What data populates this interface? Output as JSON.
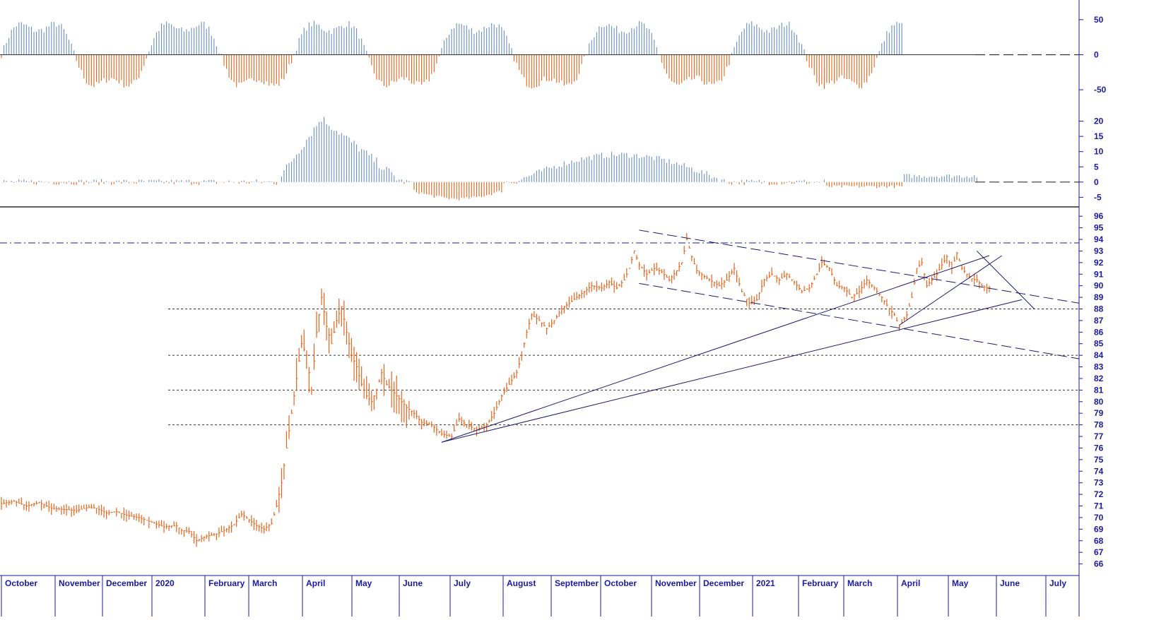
{
  "colors": {
    "up": "#6a8fbf",
    "down": "#e3641c",
    "axis": "#1a1aa0",
    "trend": "#1c1c6e",
    "grid": "#333333"
  },
  "chart_data": [
    {
      "type": "bar",
      "panel": "oscillator-top",
      "yticks": [
        "50",
        "0",
        "-50"
      ],
      "ylim": [
        -65,
        70
      ],
      "zero_line": "dashed",
      "description_series": [
        {
          "name": "positive",
          "color": "#6a8fbf"
        },
        {
          "name": "negative",
          "color": "#e3641c"
        }
      ]
    },
    {
      "type": "bar",
      "panel": "oscillator-middle",
      "yticks": [
        "20",
        "15",
        "10",
        "5",
        "0",
        "-5"
      ],
      "ylim": [
        -7,
        25
      ],
      "zero_line": "dashed"
    },
    {
      "type": "line",
      "panel": "price",
      "y_axis_side": "right",
      "yticks": [
        "96",
        "95",
        "94",
        "93",
        "92",
        "91",
        "90",
        "89",
        "88",
        "87",
        "86",
        "85",
        "84",
        "83",
        "82",
        "81",
        "80",
        "79",
        "78",
        "77",
        "76",
        "75",
        "74",
        "73",
        "72",
        "71",
        "70",
        "69",
        "68",
        "67",
        "66"
      ],
      "ylim": [
        65,
        96.5
      ],
      "x_month_labels": [
        "October",
        "November",
        "December",
        "2020",
        "February",
        "March",
        "April",
        "May",
        "June",
        "July",
        "August",
        "September",
        "October",
        "November",
        "December",
        "2021",
        "February",
        "March",
        "April",
        "May",
        "June",
        "July"
      ],
      "horizontal_levels": [
        {
          "value": 93.7,
          "style": "dash-dot"
        },
        {
          "value": 88,
          "style": "dotted"
        },
        {
          "value": 84,
          "style": "dotted"
        },
        {
          "value": 81,
          "style": "dotted"
        },
        {
          "value": 78,
          "style": "dotted"
        }
      ],
      "price_path": [
        [
          0,
          71.2
        ],
        [
          5,
          71.4
        ],
        [
          10,
          71.0
        ],
        [
          15,
          71.3
        ],
        [
          20,
          70.8
        ],
        [
          25,
          70.7
        ],
        [
          30,
          70.6
        ],
        [
          35,
          70.9
        ],
        [
          38,
          70.8
        ],
        [
          42,
          70.4
        ],
        [
          46,
          70.5
        ],
        [
          50,
          70.2
        ],
        [
          55,
          70.0
        ],
        [
          60,
          69.6
        ],
        [
          65,
          69.2
        ],
        [
          70,
          69.3
        ],
        [
          72,
          68.9
        ],
        [
          75,
          68.8
        ],
        [
          78,
          68.0
        ],
        [
          82,
          68.4
        ],
        [
          86,
          68.6
        ],
        [
          90,
          69.0
        ],
        [
          93,
          69.4
        ],
        [
          96,
          70.3
        ],
        [
          99,
          69.8
        ],
        [
          102,
          69.3
        ],
        [
          105,
          69.0
        ],
        [
          108,
          69.5
        ],
        [
          110,
          71.0
        ],
        [
          112,
          73.0
        ],
        [
          114,
          76.0
        ],
        [
          116,
          79.0
        ],
        [
          118,
          82.0
        ],
        [
          120,
          85.0
        ],
        [
          122,
          84.0
        ],
        [
          124,
          81.0
        ],
        [
          126,
          86.0
        ],
        [
          128,
          89.0
        ],
        [
          130,
          86.5
        ],
        [
          132,
          85.0
        ],
        [
          134,
          87.0
        ],
        [
          136,
          88.2
        ],
        [
          138,
          86.0
        ],
        [
          140,
          84.0
        ],
        [
          142,
          83.0
        ],
        [
          144,
          81.5
        ],
        [
          146,
          80.5
        ],
        [
          148,
          80.0
        ],
        [
          150,
          81.0
        ],
        [
          152,
          82.5
        ],
        [
          154,
          81.5
        ],
        [
          156,
          81.0
        ],
        [
          158,
          80.5
        ],
        [
          160,
          80.0
        ],
        [
          162,
          79.5
        ],
        [
          165,
          79.0
        ],
        [
          168,
          78.2
        ],
        [
          172,
          78.0
        ],
        [
          176,
          77.2
        ],
        [
          180,
          77.0
        ],
        [
          183,
          78.5
        ],
        [
          186,
          78.0
        ],
        [
          190,
          77.6
        ],
        [
          194,
          78.0
        ],
        [
          197,
          79.0
        ],
        [
          200,
          80.5
        ],
        [
          203,
          81.5
        ],
        [
          206,
          82.5
        ],
        [
          208,
          84.0
        ],
        [
          210,
          86.0
        ],
        [
          212,
          87.5
        ],
        [
          215,
          87.0
        ],
        [
          218,
          86.3
        ],
        [
          221,
          87.0
        ],
        [
          224,
          88.0
        ],
        [
          227,
          88.5
        ],
        [
          230,
          89.0
        ],
        [
          233,
          89.5
        ],
        [
          236,
          90.0
        ],
        [
          240,
          89.8
        ],
        [
          243,
          90.3
        ],
        [
          246,
          89.8
        ],
        [
          249,
          90.5
        ],
        [
          251,
          91.5
        ],
        [
          253,
          93.0
        ],
        [
          255,
          91.8
        ],
        [
          258,
          91.0
        ],
        [
          261,
          91.5
        ],
        [
          264,
          91.2
        ],
        [
          267,
          90.5
        ],
        [
          270,
          91.3
        ],
        [
          272,
          92.0
        ],
        [
          274,
          94.0
        ],
        [
          276,
          92.5
        ],
        [
          278,
          91.3
        ],
        [
          281,
          90.8
        ],
        [
          284,
          90.4
        ],
        [
          287,
          90.0
        ],
        [
          290,
          90.5
        ],
        [
          293,
          91.5
        ],
        [
          296,
          89.5
        ],
        [
          299,
          88.5
        ],
        [
          302,
          88.8
        ],
        [
          305,
          90.5
        ],
        [
          308,
          91.0
        ],
        [
          311,
          90.5
        ],
        [
          314,
          91.0
        ],
        [
          317,
          90.3
        ],
        [
          320,
          89.5
        ],
        [
          323,
          89.8
        ],
        [
          326,
          91.0
        ],
        [
          328,
          92.0
        ],
        [
          331,
          91.5
        ],
        [
          334,
          90.0
        ],
        [
          337,
          89.8
        ],
        [
          340,
          89.0
        ],
        [
          343,
          89.5
        ],
        [
          346,
          90.5
        ],
        [
          349,
          89.8
        ],
        [
          352,
          89.0
        ],
        [
          355,
          88.0
        ],
        [
          357,
          87.5
        ],
        [
          359,
          86.5
        ],
        [
          362,
          87.5
        ],
        [
          364,
          89.0
        ],
        [
          366,
          91.5
        ],
        [
          368,
          92.0
        ],
        [
          370,
          90.0
        ],
        [
          372,
          90.5
        ],
        [
          374,
          91.0
        ],
        [
          376,
          91.8
        ],
        [
          378,
          92.5
        ],
        [
          380,
          91.5
        ],
        [
          382,
          92.8
        ],
        [
          384,
          91.5
        ],
        [
          386,
          91.0
        ],
        [
          388,
          90.6
        ],
        [
          390,
          90.5
        ],
        [
          392,
          90.0
        ],
        [
          394,
          89.8
        ]
      ],
      "trendlines": [
        {
          "from": [
            176,
            76.5
          ],
          "to": [
            395,
            92.6
          ],
          "style": "solid"
        },
        {
          "from": [
            176,
            76.5
          ],
          "to": [
            408,
            88.8
          ],
          "style": "solid"
        },
        {
          "from": [
            359,
            86.6
          ],
          "to": [
            400,
            92.6
          ],
          "style": "solid"
        },
        {
          "from": [
            390,
            93.0
          ],
          "to": [
            413,
            88.0
          ],
          "style": "solid"
        },
        {
          "from": [
            255,
            94.8
          ],
          "to": [
            460,
            88.5
          ],
          "style": "dashed"
        },
        {
          "from": [
            255,
            90.2
          ],
          "to": [
            460,
            83.7
          ],
          "style": "dashed"
        }
      ]
    }
  ]
}
